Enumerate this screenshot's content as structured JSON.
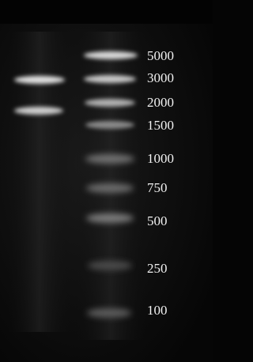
{
  "ladder": {
    "labels": [
      "5000",
      "3000",
      "2000",
      "1500",
      "1000",
      "750",
      "500",
      "250",
      "100"
    ]
  }
}
